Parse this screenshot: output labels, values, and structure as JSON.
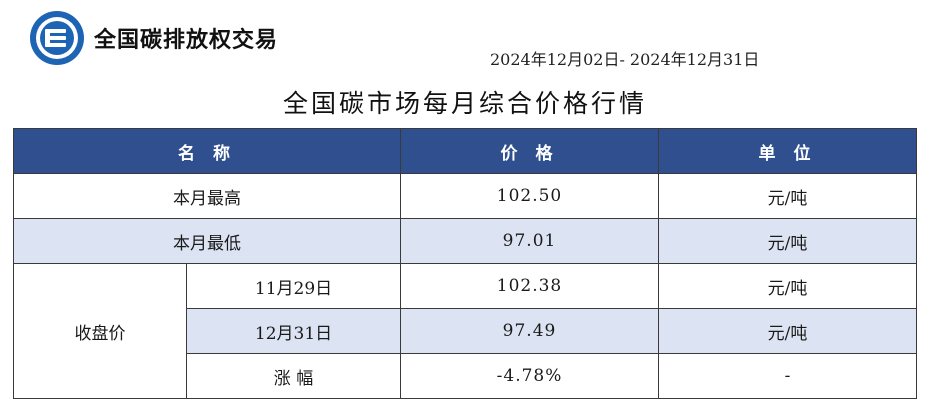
{
  "header": {
    "brand": "全国碳排放权交易",
    "date_range": "2024年12月02日- 2024年12月31日",
    "title": "全国碳市场每月综合价格行情"
  },
  "table": {
    "headers": [
      "名 称",
      "价 格",
      "单 位"
    ],
    "rows": [
      {
        "label": "本月最高",
        "price": "102.50",
        "unit": "元/吨"
      },
      {
        "label": "本月最低",
        "price": "97.01",
        "unit": "元/吨"
      }
    ],
    "close_group": {
      "label": "收盘价",
      "rows": [
        {
          "label": "11月29日",
          "price": "102.38",
          "unit": "元/吨"
        },
        {
          "label": "12月31日",
          "price": "97.49",
          "unit": "元/吨"
        },
        {
          "label": "涨 幅",
          "price": "-4.78%",
          "unit": "-"
        }
      ]
    }
  },
  "colors": {
    "header_bg": "#2f4f8f",
    "shaded_row_bg": "#dce3f3",
    "logo_blue": "#1e64b4"
  },
  "icons": {
    "logo": "carbon-exchange-logo-icon"
  }
}
